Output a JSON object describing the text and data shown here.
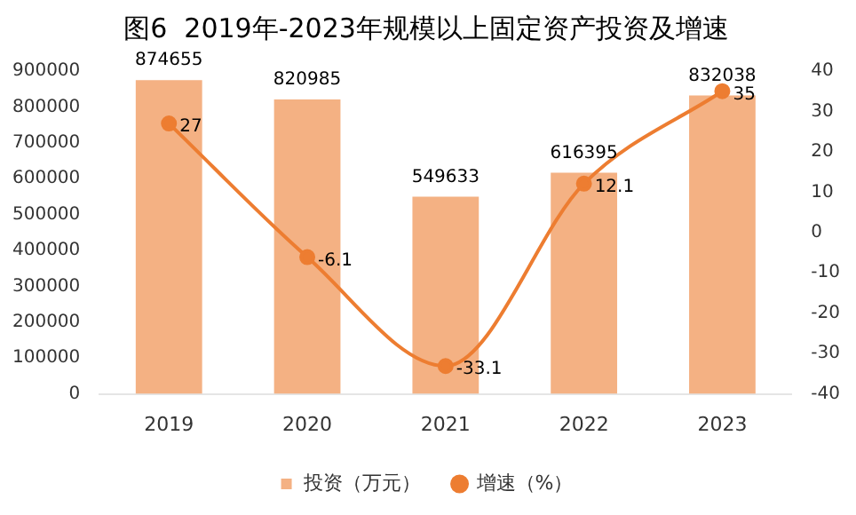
{
  "chart_data": {
    "type": "bar",
    "title": "图6  2019年-2023年规模以上固定资产投资及增速",
    "categories": [
      "2019",
      "2020",
      "2021",
      "2022",
      "2023"
    ],
    "series": [
      {
        "name": "投资（万元）",
        "color": "#f4b183",
        "values": [
          874655,
          820985,
          549633,
          616395,
          832038
        ]
      },
      {
        "name": "增速（%）",
        "type": "line",
        "axis": "y2",
        "color": "#ed7d31",
        "values": [
          27,
          -6.1,
          -33.1,
          12.1,
          35
        ]
      }
    ],
    "ylim": [
      0,
      900000
    ],
    "yticks": [
      0,
      100000,
      200000,
      300000,
      400000,
      500000,
      600000,
      700000,
      800000,
      900000
    ],
    "y2lim": [
      -40,
      40
    ],
    "y2ticks": [
      -40,
      -30,
      -20,
      -10,
      0,
      10,
      20,
      30,
      40
    ],
    "data_labels": true,
    "legend": "bottom",
    "grid": false,
    "marker": "circle"
  }
}
